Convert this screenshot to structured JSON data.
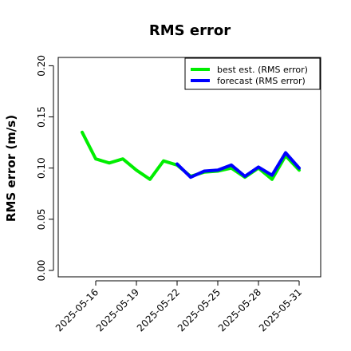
{
  "chart_data": {
    "type": "line",
    "title": "RMS error",
    "ylabel": "RMS error (m/s)",
    "xlabel": "",
    "ylim": [
      0,
      0.21
    ],
    "y_ticks": [
      "0.00",
      "0.05",
      "0.10",
      "0.15",
      "0.20"
    ],
    "x_ticks": [
      "2025-05-16",
      "2025-05-19",
      "2025-05-22",
      "2025-05-25",
      "2025-05-28",
      "2025-05-31"
    ],
    "highlight_tick": "2025-05-22",
    "highlight_color": "#228B22",
    "grid": false,
    "legend_position": "top-right",
    "series": [
      {
        "name": "best est. (RMS error)",
        "color": "#00ee00",
        "x": [
          "2025-05-15",
          "2025-05-16",
          "2025-05-17",
          "2025-05-18",
          "2025-05-19",
          "2025-05-20",
          "2025-05-21",
          "2025-05-22",
          "2025-05-23",
          "2025-05-24",
          "2025-05-25",
          "2025-05-26",
          "2025-05-27",
          "2025-05-28",
          "2025-05-29",
          "2025-05-30",
          "2025-05-31"
        ],
        "values": [
          0.135,
          0.109,
          0.105,
          0.109,
          0.098,
          0.089,
          0.107,
          0.103,
          0.092,
          0.096,
          0.097,
          0.1,
          0.091,
          0.1,
          0.089,
          0.112,
          0.098
        ]
      },
      {
        "name": "forecast (RMS error)",
        "color": "#0000ff",
        "x": [
          "2025-05-22",
          "2025-05-23",
          "2025-05-24",
          "2025-05-25",
          "2025-05-26",
          "2025-05-27",
          "2025-05-28",
          "2025-05-29",
          "2025-05-30",
          "2025-05-31"
        ],
        "values": [
          0.104,
          0.091,
          0.097,
          0.098,
          0.103,
          0.092,
          0.101,
          0.093,
          0.115,
          0.1
        ]
      }
    ]
  }
}
